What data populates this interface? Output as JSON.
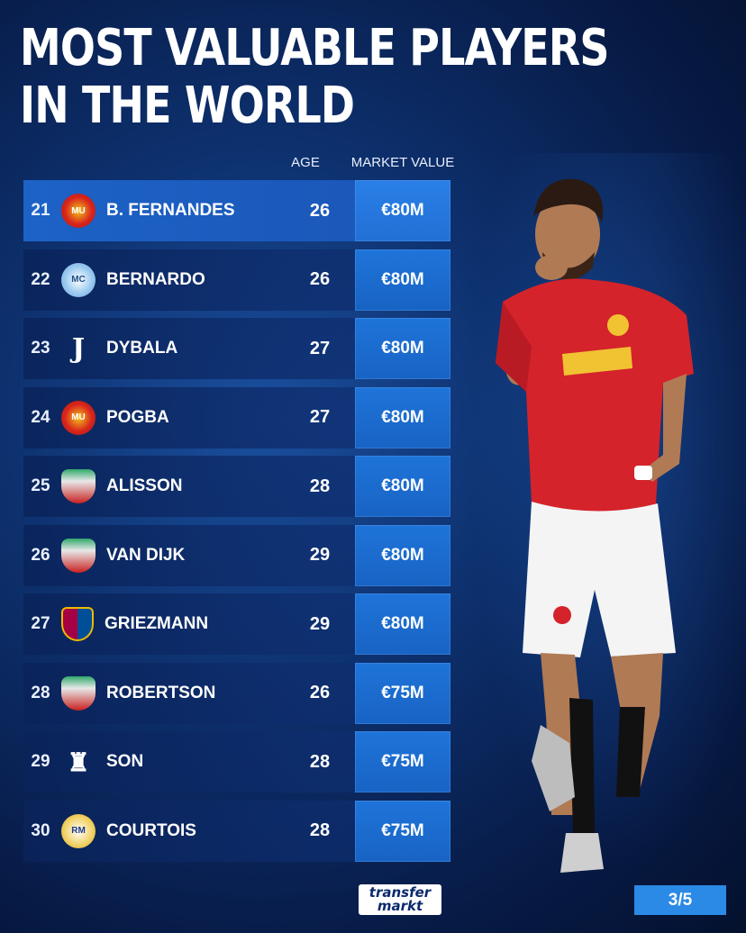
{
  "title": {
    "line1": "MOST VALUABLE PLAYERS",
    "line2": "IN THE WORLD"
  },
  "columns": {
    "age": "AGE",
    "market_value": "MARKET VALUE"
  },
  "rows": [
    {
      "rank": "21",
      "name": "B. FERNANDES",
      "age": "26",
      "value": "€80M",
      "club": "manchester-united"
    },
    {
      "rank": "22",
      "name": "BERNARDO",
      "age": "26",
      "value": "€80M",
      "club": "manchester-city"
    },
    {
      "rank": "23",
      "name": "DYBALA",
      "age": "27",
      "value": "€80M",
      "club": "juventus"
    },
    {
      "rank": "24",
      "name": "POGBA",
      "age": "27",
      "value": "€80M",
      "club": "manchester-united"
    },
    {
      "rank": "25",
      "name": "ALISSON",
      "age": "28",
      "value": "€80M",
      "club": "liverpool"
    },
    {
      "rank": "26",
      "name": "VAN DIJK",
      "age": "29",
      "value": "€80M",
      "club": "liverpool"
    },
    {
      "rank": "27",
      "name": "GRIEZMANN",
      "age": "29",
      "value": "€80M",
      "club": "barcelona"
    },
    {
      "rank": "28",
      "name": "ROBERTSON",
      "age": "26",
      "value": "€75M",
      "club": "liverpool"
    },
    {
      "rank": "29",
      "name": "SON",
      "age": "28",
      "value": "€75M",
      "club": "tottenham"
    },
    {
      "rank": "30",
      "name": "COURTOIS",
      "age": "28",
      "value": "€75M",
      "club": "real-madrid"
    }
  ],
  "logo": {
    "line1": "transfer",
    "line2": "markt"
  },
  "page_indicator": "3/5",
  "colors": {
    "accent": "#2b8ae6",
    "background": "#0d2f6b",
    "highlight_row": "#1d62c7"
  }
}
